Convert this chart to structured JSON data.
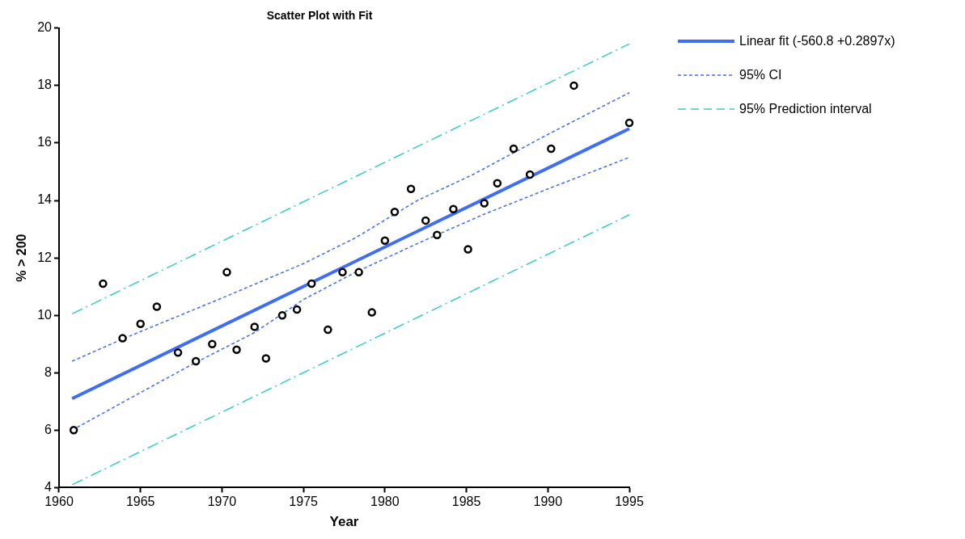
{
  "chart_data": {
    "type": "scatter",
    "title": "Scatter Plot with Fit",
    "xlabel": "Year",
    "ylabel": "% > 200",
    "xlim": [
      1960,
      1995
    ],
    "xticks": [
      1960,
      1965,
      1970,
      1975,
      1980,
      1985,
      1990,
      1995
    ],
    "ylim": [
      4,
      20
    ],
    "yticks": [
      4,
      6,
      8,
      10,
      12,
      14,
      16,
      18,
      20
    ],
    "grid": false,
    "legend": "right",
    "series": [
      {
        "color": "#000000",
        "marker": "circle",
        "x": [
          1960.9,
          1962.7,
          1963.9,
          1965.0,
          1966.0,
          1967.3,
          1968.4,
          1969.4,
          1970.3,
          1970.9,
          1972.0,
          1972.7,
          1973.7,
          1974.6,
          1975.5,
          1976.5,
          1977.4,
          1978.4,
          1979.2,
          1980.0,
          1980.6,
          1981.6,
          1982.5,
          1983.2,
          1984.2,
          1985.1,
          1986.1,
          1986.9,
          1987.9,
          1988.9,
          1990.2,
          1991.6,
          1995.0
        ],
        "values": [
          6.0,
          11.1,
          9.2,
          9.7,
          10.3,
          8.7,
          8.4,
          9.0,
          11.5,
          8.8,
          9.6,
          8.5,
          10.0,
          10.2,
          11.1,
          9.5,
          11.5,
          11.5,
          10.1,
          12.6,
          13.6,
          14.4,
          13.3,
          12.8,
          13.7,
          12.3,
          13.9,
          14.6,
          15.8,
          14.9,
          15.8,
          18.0,
          16.7
        ]
      },
      {
        "type": "line",
        "name": "Linear fit (-560.8  +0.2897x)",
        "color": "#3f6ef5",
        "line_style": "solid",
        "marker": "none",
        "x": [
          1960.8,
          1995.0
        ],
        "values": [
          7.1,
          16.5
        ]
      },
      {
        "type": "line",
        "name": "95% CI",
        "color": "#3f6ef5",
        "line_style": "dotted",
        "marker": "none",
        "x": [
          1960.8,
          1964.0,
          1970.0,
          1975.0,
          1978.2,
          1982.0,
          1985.4,
          1990.0,
          1995.0
        ],
        "values": [
          8.4,
          9.2,
          10.6,
          11.8,
          12.7,
          14.0,
          14.9,
          16.3,
          17.75
        ]
      },
      {
        "type": "line",
        "color": "#3f6ef5",
        "line_style": "dotted",
        "marker": "none",
        "x": [
          1960.8,
          1964.0,
          1968.2,
          1972.0,
          1975.0,
          1978.2,
          1982.0,
          1986.0,
          1990.0,
          1995.0
        ],
        "values": [
          6.0,
          7.0,
          8.3,
          9.4,
          10.55,
          11.5,
          12.5,
          13.5,
          14.4,
          15.5
        ]
      },
      {
        "type": "line",
        "name": "95% Prediction interval",
        "color": "#33cccc",
        "line_style": "dashed",
        "marker": "none",
        "x": [
          1960.8,
          1995.0
        ],
        "values": [
          10.05,
          19.45
        ]
      },
      {
        "type": "line",
        "color": "#33cccc",
        "line_style": "dashed",
        "marker": "none",
        "x": [
          1960.8,
          1995.0
        ],
        "values": [
          4.1,
          13.5
        ]
      }
    ]
  }
}
